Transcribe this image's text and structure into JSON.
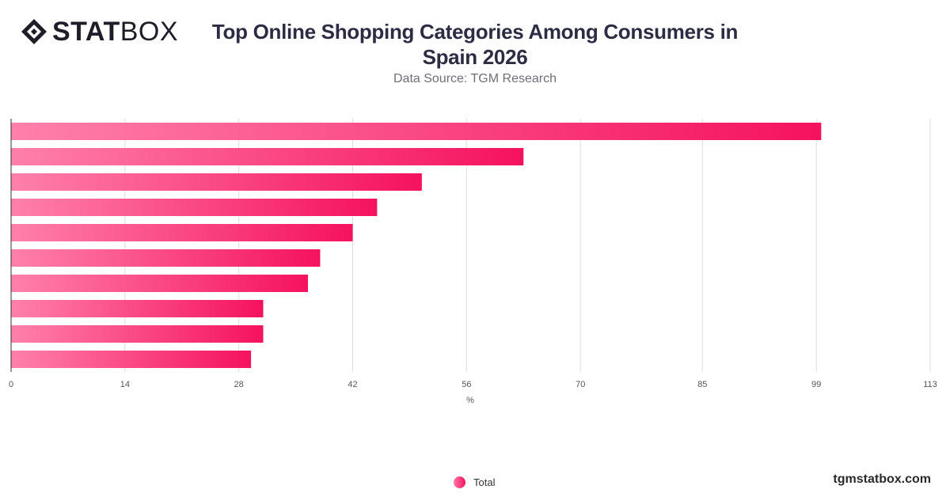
{
  "header": {
    "logo_stat": "STAT",
    "logo_box": "BOX",
    "title": "Top Online Shopping Categories Among Consumers in Spain 2026",
    "subtitle": "Data Source: TGM Research"
  },
  "legend": {
    "label": "Total"
  },
  "footer": {
    "brand": "tgmstatbox.com"
  },
  "colors": {
    "bar_start": "#ff80ab",
    "bar_end": "#f5125e",
    "grid": "#dddddd",
    "text": "#333333"
  },
  "chart_data": {
    "type": "bar",
    "orientation": "horizontal",
    "title": "Top Online Shopping Categories Among Consumers in Spain 2026",
    "subtitle": "Data Source: TGM Research",
    "xlabel": "%",
    "xlim": [
      0,
      113
    ],
    "xticks": [
      0,
      14,
      28,
      42,
      56,
      70,
      85,
      99,
      113
    ],
    "grid": true,
    "legend_position": "bottom",
    "categories": [
      "",
      "",
      "",
      "",
      "",
      "",
      "",
      "",
      "",
      ""
    ],
    "series": [
      {
        "name": "Total",
        "values": [
          99.6,
          63,
          50.5,
          45,
          42,
          38,
          36.5,
          31,
          31,
          29.5
        ]
      }
    ]
  }
}
